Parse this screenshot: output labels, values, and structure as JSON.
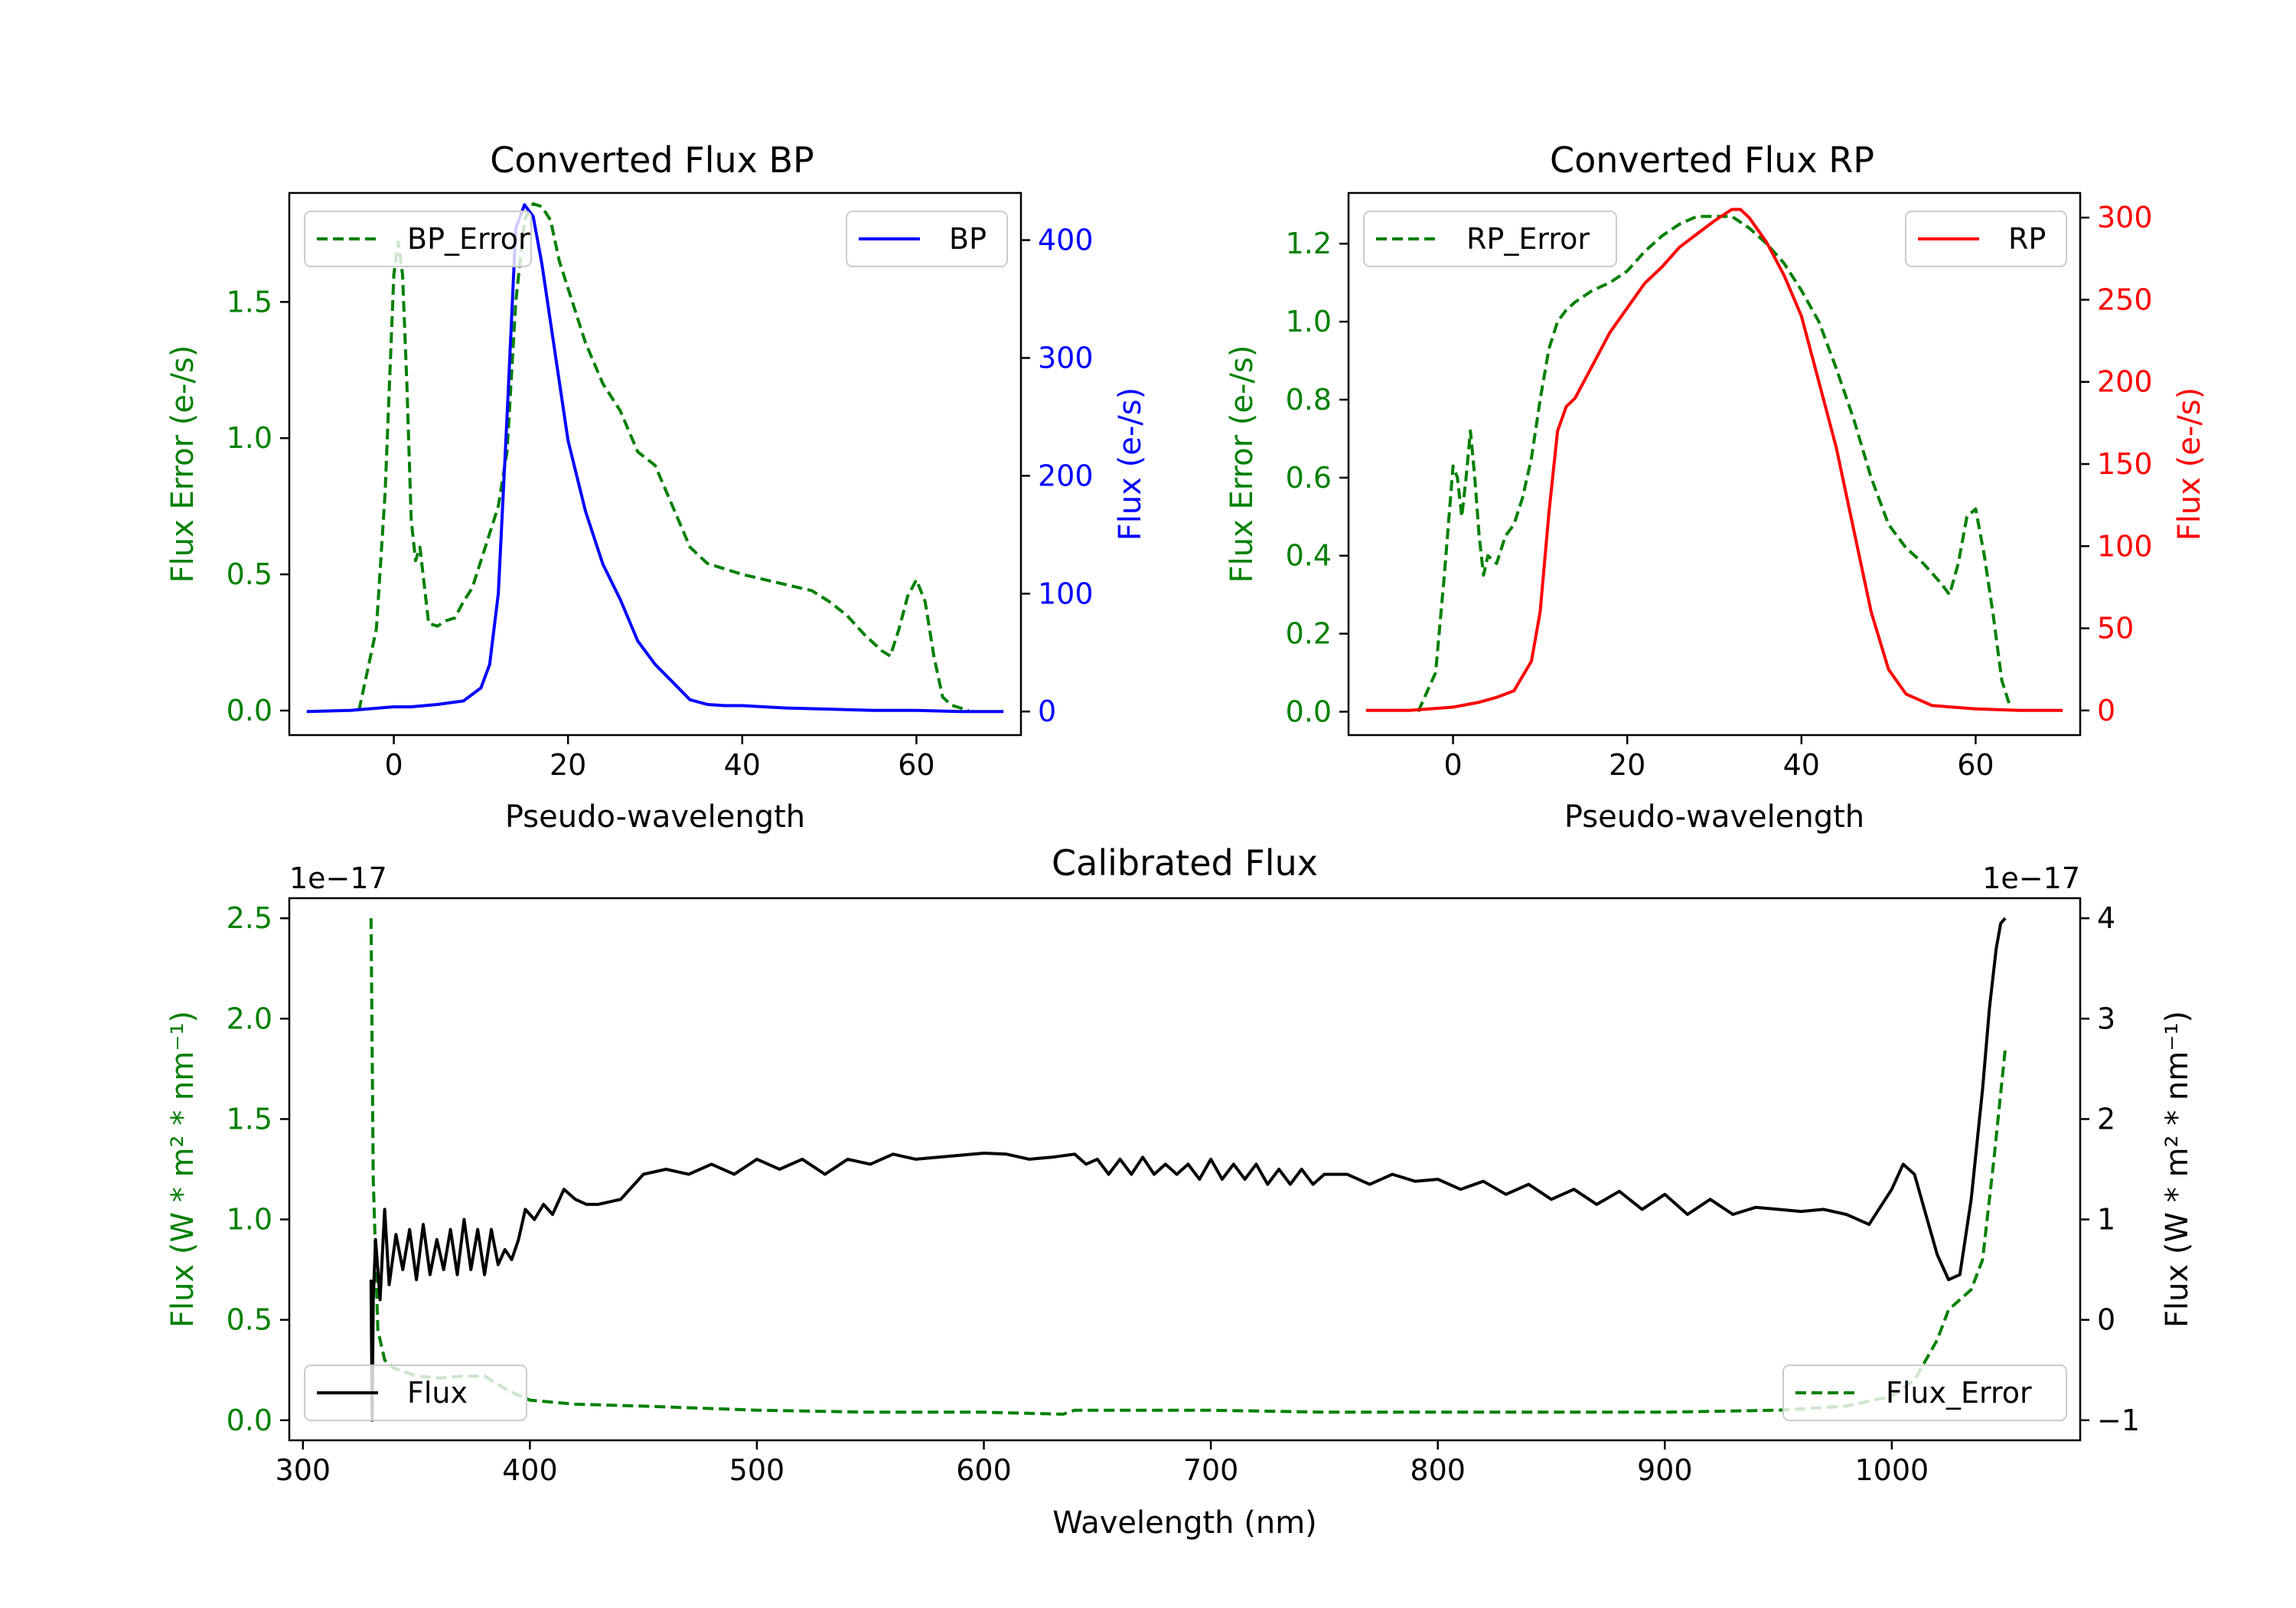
{
  "chart_data": [
    {
      "id": "bp",
      "type": "line",
      "title": "Converted Flux BP",
      "xlabel": "Pseudo-wavelength",
      "xlim": [
        -12,
        72
      ],
      "xticks": [
        0,
        20,
        40,
        60
      ],
      "left_axis": {
        "label": "Flux Error (e-/s)",
        "color": "#008000",
        "ylim": [
          -0.09,
          1.9
        ],
        "ticks": [
          0.0,
          0.5,
          1.0,
          1.5
        ],
        "tick_labels": [
          "0.0",
          "0.5",
          "1.0",
          "1.5"
        ]
      },
      "right_axis": {
        "label": "Flux (e-/s)",
        "color": "#0000ff",
        "ylim": [
          -20,
          440
        ],
        "ticks": [
          0,
          100,
          200,
          300,
          400
        ],
        "tick_labels": [
          "0",
          "100",
          "200",
          "300",
          "400"
        ]
      },
      "series": [
        {
          "name": "BP_Error",
          "axis": "left",
          "color": "#008000",
          "dash": true,
          "x": [
            -4,
            -2,
            -1,
            0,
            0.5,
            1,
            1.5,
            2,
            2.5,
            3,
            4,
            5,
            6,
            7,
            8,
            9,
            10,
            11,
            12,
            13,
            14,
            15,
            16,
            17,
            18,
            19,
            20,
            22,
            24,
            26,
            28,
            30,
            32,
            34,
            36,
            38,
            40,
            44,
            48,
            50,
            52,
            54,
            56,
            57,
            58,
            59,
            60,
            61,
            62,
            63,
            64,
            65,
            66
          ],
          "y": [
            0.0,
            0.3,
            0.8,
            1.6,
            1.72,
            1.6,
            1.2,
            0.7,
            0.55,
            0.6,
            0.32,
            0.31,
            0.33,
            0.34,
            0.4,
            0.45,
            0.55,
            0.65,
            0.75,
            0.95,
            1.5,
            1.8,
            1.86,
            1.85,
            1.8,
            1.65,
            1.55,
            1.35,
            1.2,
            1.1,
            0.95,
            0.9,
            0.75,
            0.6,
            0.54,
            0.52,
            0.5,
            0.47,
            0.44,
            0.4,
            0.35,
            0.28,
            0.22,
            0.2,
            0.3,
            0.42,
            0.48,
            0.4,
            0.2,
            0.05,
            0.02,
            0.01,
            0.0
          ]
        },
        {
          "name": "BP",
          "axis": "right",
          "color": "#0000ff",
          "dash": false,
          "x": [
            -10,
            -5,
            0,
            2,
            5,
            8,
            10,
            11,
            12,
            13,
            14,
            15,
            16,
            17,
            18,
            20,
            22,
            24,
            26,
            28,
            30,
            32,
            34,
            36,
            38,
            40,
            45,
            50,
            55,
            60,
            65,
            70
          ],
          "y": [
            0,
            1,
            4,
            4,
            6,
            9,
            20,
            40,
            100,
            250,
            410,
            430,
            420,
            380,
            330,
            230,
            170,
            125,
            95,
            60,
            40,
            25,
            10,
            6,
            5,
            5,
            3,
            2,
            1,
            1,
            0,
            0
          ]
        }
      ],
      "legends": [
        {
          "series": "BP_Error",
          "label": "BP_Error",
          "position": "upper left"
        },
        {
          "series": "BP",
          "label": "BP",
          "position": "upper right"
        }
      ]
    },
    {
      "id": "rp",
      "type": "line",
      "title": "Converted Flux RP",
      "xlabel": "Pseudo-wavelength",
      "xlim": [
        -12,
        72
      ],
      "xticks": [
        0,
        20,
        40,
        60
      ],
      "left_axis": {
        "label": "Flux Error (e-/s)",
        "color": "#008000",
        "ylim": [
          -0.06,
          1.33
        ],
        "ticks": [
          0.0,
          0.2,
          0.4,
          0.6,
          0.8,
          1.0,
          1.2
        ],
        "tick_labels": [
          "0.0",
          "0.2",
          "0.4",
          "0.6",
          "0.8",
          "1.0",
          "1.2"
        ]
      },
      "right_axis": {
        "label": "Flux (e-/s)",
        "color": "#ff0000",
        "ylim": [
          -15,
          315
        ],
        "ticks": [
          0,
          50,
          100,
          150,
          200,
          250,
          300
        ],
        "tick_labels": [
          "0",
          "50",
          "100",
          "150",
          "200",
          "250",
          "300"
        ]
      },
      "series": [
        {
          "name": "RP_Error",
          "axis": "left",
          "color": "#008000",
          "dash": true,
          "x": [
            -4,
            -2,
            -1,
            0,
            0.5,
            1,
            1.5,
            2,
            2.5,
            3,
            3.5,
            4,
            5,
            6,
            7,
            8,
            9,
            10,
            11,
            12,
            13,
            14,
            16,
            18,
            20,
            22,
            24,
            26,
            28,
            30,
            32,
            34,
            36,
            38,
            40,
            42,
            44,
            46,
            48,
            50,
            52,
            54,
            56,
            57,
            58,
            59,
            60,
            61,
            62,
            63,
            64
          ],
          "y": [
            0.0,
            0.1,
            0.35,
            0.63,
            0.6,
            0.5,
            0.6,
            0.72,
            0.6,
            0.45,
            0.35,
            0.4,
            0.38,
            0.45,
            0.48,
            0.55,
            0.65,
            0.8,
            0.93,
            1.0,
            1.03,
            1.05,
            1.08,
            1.1,
            1.13,
            1.18,
            1.22,
            1.25,
            1.27,
            1.27,
            1.27,
            1.24,
            1.2,
            1.15,
            1.08,
            1.0,
            0.88,
            0.75,
            0.6,
            0.48,
            0.42,
            0.38,
            0.33,
            0.3,
            0.38,
            0.5,
            0.52,
            0.4,
            0.25,
            0.08,
            0.01
          ]
        },
        {
          "name": "RP",
          "axis": "right",
          "color": "#ff0000",
          "dash": false,
          "x": [
            -10,
            -5,
            0,
            3,
            5,
            7,
            9,
            10,
            11,
            12,
            13,
            14,
            16,
            18,
            20,
            22,
            24,
            26,
            28,
            30,
            32,
            33,
            34,
            36,
            38,
            40,
            42,
            44,
            46,
            48,
            50,
            52,
            55,
            60,
            65,
            70
          ],
          "y": [
            0,
            0,
            2,
            5,
            8,
            12,
            30,
            60,
            120,
            170,
            185,
            190,
            210,
            230,
            245,
            260,
            270,
            282,
            290,
            298,
            305,
            305,
            300,
            285,
            265,
            240,
            200,
            160,
            110,
            60,
            25,
            10,
            3,
            1,
            0,
            0
          ]
        }
      ],
      "legends": [
        {
          "series": "RP_Error",
          "label": "RP_Error",
          "position": "upper left"
        },
        {
          "series": "RP",
          "label": "RP",
          "position": "upper right"
        }
      ]
    },
    {
      "id": "cal",
      "type": "line",
      "title": "Calibrated Flux",
      "xlabel": "Wavelength (nm)",
      "xlim": [
        294,
        1083
      ],
      "xticks": [
        300,
        400,
        500,
        600,
        700,
        800,
        900,
        1000
      ],
      "left_axis": {
        "label": "Flux (W * m² * nm⁻¹)",
        "color": "#008000",
        "ylim": [
          -0.1,
          2.6
        ],
        "ticks": [
          0.0,
          0.5,
          1.0,
          1.5,
          2.0,
          2.5
        ],
        "tick_labels": [
          "0.0",
          "0.5",
          "1.0",
          "1.5",
          "2.0",
          "2.5"
        ],
        "offset_text": "1e−17"
      },
      "right_axis": {
        "label": "Flux (W * m² * nm⁻¹)",
        "color": "#000000",
        "ylim": [
          -1.2,
          4.2
        ],
        "ticks": [
          -1,
          0,
          1,
          2,
          3,
          4
        ],
        "tick_labels": [
          "−1",
          "0",
          "1",
          "2",
          "3",
          "4"
        ],
        "offset_text": "1e−17"
      },
      "series": [
        {
          "name": "Flux_Error",
          "axis": "left",
          "color": "#008000",
          "dash": true,
          "x": [
            330,
            331,
            333,
            336,
            340,
            345,
            350,
            360,
            370,
            380,
            390,
            400,
            420,
            450,
            500,
            550,
            600,
            635,
            640,
            650,
            700,
            750,
            800,
            850,
            900,
            950,
            980,
            1000,
            1010,
            1020,
            1025,
            1030,
            1035,
            1040,
            1045,
            1050
          ],
          "y": [
            2.5,
            1.2,
            0.45,
            0.3,
            0.26,
            0.24,
            0.22,
            0.21,
            0.22,
            0.22,
            0.15,
            0.1,
            0.08,
            0.07,
            0.05,
            0.04,
            0.04,
            0.03,
            0.05,
            0.05,
            0.05,
            0.04,
            0.04,
            0.04,
            0.04,
            0.05,
            0.07,
            0.12,
            0.2,
            0.4,
            0.55,
            0.6,
            0.65,
            0.8,
            1.3,
            1.85
          ]
        },
        {
          "name": "Flux",
          "axis": "right",
          "color": "#000000",
          "dash": false,
          "x": [
            330,
            330.5,
            331,
            332,
            334,
            336,
            338,
            341,
            344,
            347,
            350,
            353,
            356,
            359,
            362,
            365,
            368,
            371,
            374,
            377,
            380,
            383,
            386,
            389,
            392,
            395,
            398,
            402,
            406,
            410,
            415,
            420,
            425,
            430,
            440,
            450,
            460,
            470,
            480,
            490,
            500,
            510,
            520,
            530,
            540,
            550,
            560,
            570,
            580,
            590,
            600,
            610,
            620,
            630,
            640,
            645,
            650,
            655,
            660,
            665,
            670,
            675,
            680,
            685,
            690,
            695,
            700,
            705,
            710,
            715,
            720,
            725,
            730,
            735,
            740,
            745,
            750,
            760,
            770,
            780,
            790,
            800,
            810,
            820,
            830,
            840,
            850,
            860,
            870,
            880,
            890,
            900,
            910,
            920,
            930,
            940,
            950,
            960,
            970,
            980,
            990,
            1000,
            1005,
            1010,
            1015,
            1020,
            1025,
            1030,
            1035,
            1040,
            1043,
            1046,
            1048,
            1050
          ],
          "y": [
            0.4,
            -1.0,
            0.2,
            0.8,
            0.2,
            1.1,
            0.35,
            0.85,
            0.5,
            0.9,
            0.4,
            0.95,
            0.45,
            0.8,
            0.5,
            0.9,
            0.45,
            1.0,
            0.5,
            0.9,
            0.45,
            0.9,
            0.55,
            0.7,
            0.6,
            0.8,
            1.1,
            1.0,
            1.15,
            1.05,
            1.3,
            1.2,
            1.15,
            1.15,
            1.2,
            1.45,
            1.5,
            1.45,
            1.55,
            1.45,
            1.6,
            1.5,
            1.6,
            1.45,
            1.6,
            1.55,
            1.65,
            1.6,
            1.62,
            1.64,
            1.66,
            1.65,
            1.6,
            1.62,
            1.65,
            1.55,
            1.6,
            1.45,
            1.6,
            1.45,
            1.62,
            1.45,
            1.55,
            1.45,
            1.55,
            1.4,
            1.6,
            1.4,
            1.55,
            1.4,
            1.55,
            1.35,
            1.5,
            1.35,
            1.5,
            1.35,
            1.45,
            1.45,
            1.35,
            1.45,
            1.38,
            1.4,
            1.3,
            1.38,
            1.25,
            1.35,
            1.2,
            1.3,
            1.15,
            1.28,
            1.1,
            1.25,
            1.05,
            1.2,
            1.05,
            1.12,
            1.1,
            1.08,
            1.1,
            1.05,
            0.95,
            1.3,
            1.55,
            1.45,
            1.05,
            0.65,
            0.4,
            0.45,
            1.2,
            2.3,
            3.1,
            3.7,
            3.95,
            4.0
          ]
        }
      ],
      "legends": [
        {
          "series": "Flux",
          "label": "Flux",
          "position": "lower left"
        },
        {
          "series": "Flux_Error",
          "label": "Flux_Error",
          "position": "lower right"
        }
      ]
    }
  ]
}
